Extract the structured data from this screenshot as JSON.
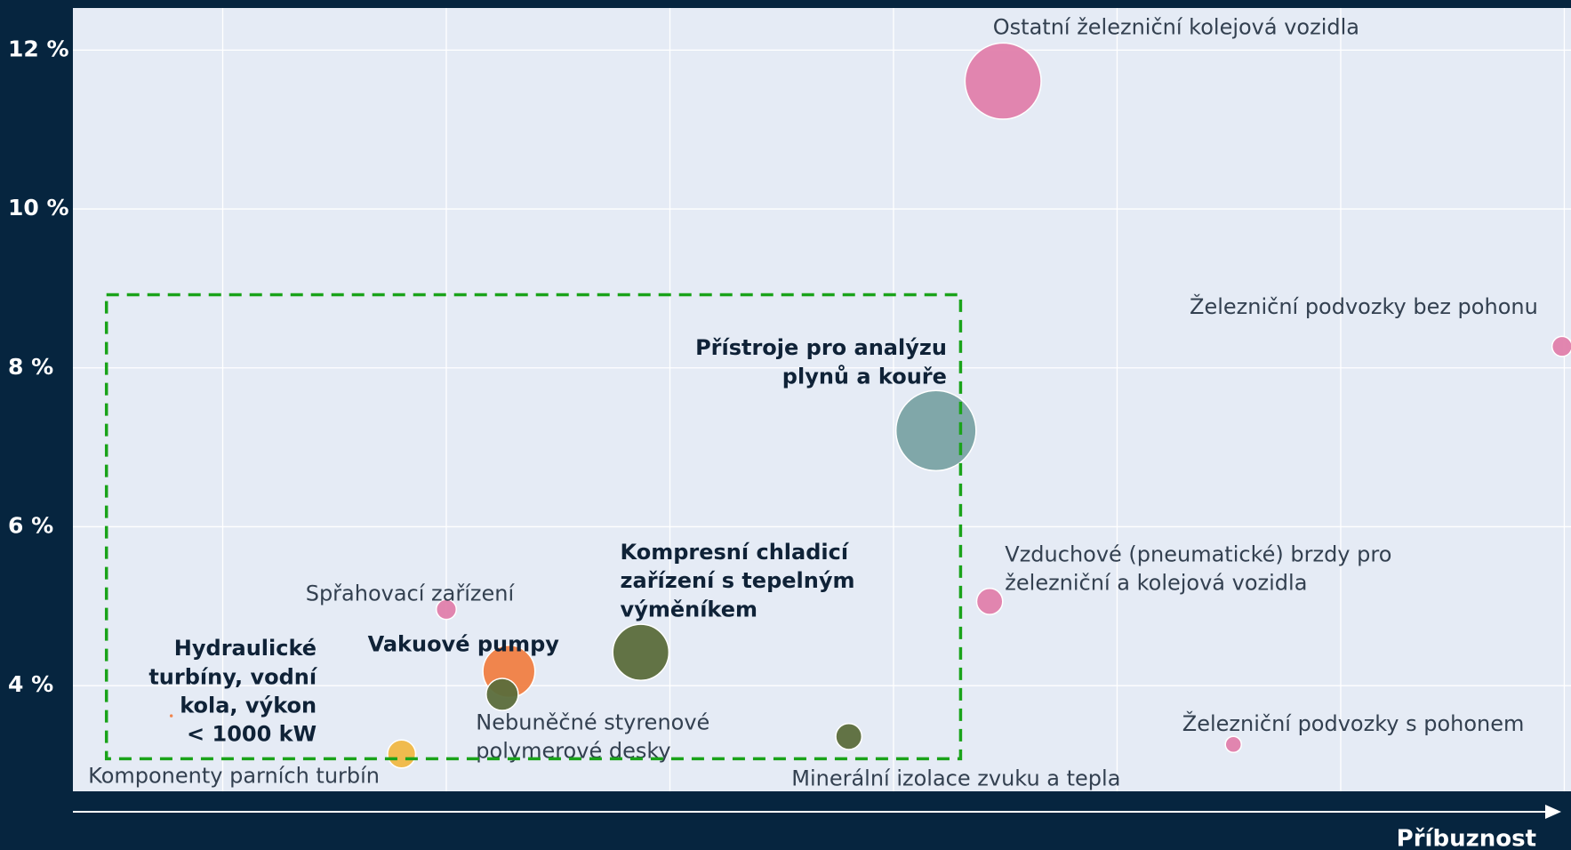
{
  "chart_data": {
    "type": "bubble",
    "x_axis_label": "Příbuznost",
    "xlim": [
      0.33,
      7.03
    ],
    "xticks": [
      1,
      2,
      3,
      4,
      5,
      6,
      7
    ],
    "ylim": [
      2.67,
      12.53
    ],
    "yticks": [
      {
        "value": 4,
        "label": "4 %"
      },
      {
        "value": 6,
        "label": "6 %"
      },
      {
        "value": 8,
        "label": "8 %"
      },
      {
        "value": 10,
        "label": "10 %"
      },
      {
        "value": 12,
        "label": "12 %"
      }
    ],
    "grid": true,
    "labels": [
      [
        "Ostatní železniční kolejová vozidla"
      ],
      [
        "Železniční podvozky bez pohonu"
      ],
      [
        "Přístroje pro analýzu",
        "plynů a kouře"
      ],
      [
        "Vzduchové (pneumatické) brzdy pro",
        "železniční a kolejová vozidla"
      ],
      [
        "Spřahovací zařízení"
      ],
      [
        "Kompresní chladicí",
        "zařízení s tepelným",
        "výměníkem"
      ],
      [
        "Vakuové pumpy"
      ],
      [
        "Nebuněčné styrenové",
        "polymerové desky"
      ],
      [
        "Hydraulické",
        "turbíny, vodní",
        "kola, výkon",
        "< 1000 kW"
      ],
      [
        "Komponenty parních turbín"
      ],
      [
        "Minerální izolace zvuku a tepla"
      ],
      [
        "Železniční podvozky s pohonem"
      ]
    ],
    "x": [
      4.49,
      6.99,
      4.19,
      4.43,
      2.0,
      2.87,
      2.28,
      2.25,
      0.77,
      1.8,
      3.8,
      5.52
    ],
    "values": [
      11.61,
      8.27,
      7.21,
      5.06,
      4.96,
      4.42,
      4.18,
      3.89,
      3.62,
      3.14,
      3.36,
      3.26
    ],
    "sizes": [
      38,
      10,
      40,
      13,
      10,
      28,
      26,
      16,
      1.5,
      14,
      13,
      8
    ],
    "colors": [
      "#e07fab",
      "#e07fab",
      "#7aa3a4",
      "#e07fab",
      "#e07fab",
      "#5b6d3b",
      "#f08043",
      "#5b6d3b",
      "#f08043",
      "#f0b844",
      "#5b6d3b",
      "#e07fab"
    ],
    "bold": [
      false,
      false,
      true,
      false,
      false,
      true,
      true,
      false,
      true,
      false,
      false,
      false
    ],
    "highlight_box": {
      "x": [
        0.48,
        4.3
      ],
      "y": [
        3.08,
        8.92
      ],
      "color": "#1aa31a"
    }
  }
}
